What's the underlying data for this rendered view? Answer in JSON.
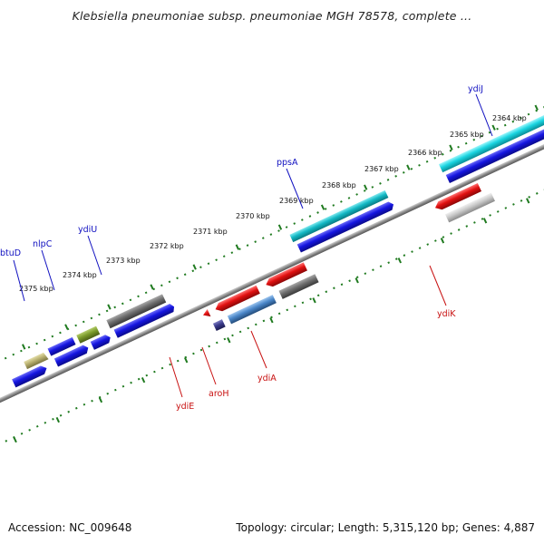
{
  "title": "Klebsiella pneumoniae subsp. pneumoniae MGH 78578, complete ...",
  "footer": {
    "accession": "Accession: NC_009648",
    "summary": "Topology: circular; Length: 5,315,120 bp; Genes: 4,887"
  },
  "kbp_labels": [
    "2364 kbp",
    "2365 kbp",
    "2366 kbp",
    "2367 kbp",
    "2368 kbp",
    "2369 kbp",
    "2370 kbp",
    "2371 kbp",
    "2372 kbp",
    "2373 kbp",
    "2374 kbp",
    "2375 kbp"
  ],
  "genes_top": [
    "ydiJ",
    "ppsA",
    "ydiU",
    "nlpC",
    "btuD"
  ],
  "genes_bottom": [
    "ydiK",
    "ydiA",
    "aroH",
    "ydiE"
  ],
  "colors": {
    "blue": "#1515e0",
    "red": "#e01010",
    "cyan": "#19d4e0",
    "gray": "#6e6e6e",
    "lightgray": "#c8c8c8",
    "olive": "#7a9a2a",
    "steelblue": "#4a86c8",
    "navy": "#3a3a8a",
    "tan": "#b8b070",
    "tick_green": "#1f7a1f"
  }
}
